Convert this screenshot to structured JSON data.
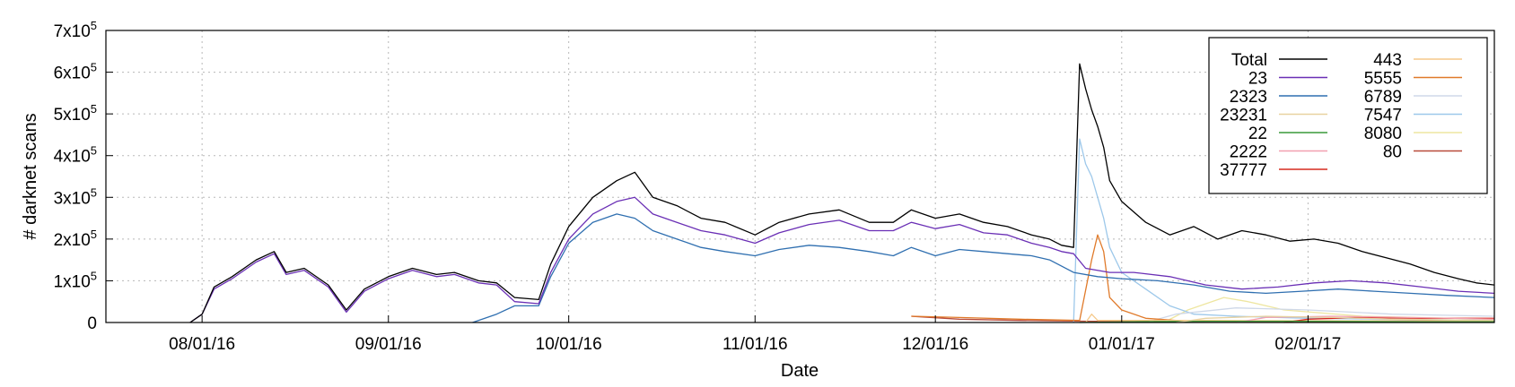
{
  "chart_data": {
    "type": "line",
    "xlabel": "Date",
    "ylabel": "# darknet scans",
    "xlim": [
      "2016-07-16",
      "2017-03-04"
    ],
    "ylim": [
      0,
      700000
    ],
    "y_ticks": [
      {
        "value": 0,
        "base": "0",
        "exp": ""
      },
      {
        "value": 100000,
        "base": "1x10",
        "exp": "5"
      },
      {
        "value": 200000,
        "base": "2x10",
        "exp": "5"
      },
      {
        "value": 300000,
        "base": "3x10",
        "exp": "5"
      },
      {
        "value": 400000,
        "base": "4x10",
        "exp": "5"
      },
      {
        "value": 500000,
        "base": "5x10",
        "exp": "5"
      },
      {
        "value": 600000,
        "base": "6x10",
        "exp": "5"
      },
      {
        "value": 700000,
        "base": "7x10",
        "exp": "5"
      }
    ],
    "x_ticks": [
      {
        "date": "2016-08-01",
        "label": "08/01/16"
      },
      {
        "date": "2016-09-01",
        "label": "09/01/16"
      },
      {
        "date": "2016-10-01",
        "label": "10/01/16"
      },
      {
        "date": "2016-11-01",
        "label": "11/01/16"
      },
      {
        "date": "2016-12-01",
        "label": "12/01/16"
      },
      {
        "date": "2017-01-01",
        "label": "01/01/17"
      },
      {
        "date": "2017-02-01",
        "label": "02/01/17"
      }
    ],
    "grid": true,
    "legend_position": "top-right",
    "series": [
      {
        "name": "Total",
        "color": "#000000",
        "points": [
          [
            "2016-07-30",
            0
          ],
          [
            "2016-08-01",
            20000
          ],
          [
            "2016-08-03",
            85000
          ],
          [
            "2016-08-06",
            110000
          ],
          [
            "2016-08-10",
            150000
          ],
          [
            "2016-08-13",
            170000
          ],
          [
            "2016-08-15",
            120000
          ],
          [
            "2016-08-18",
            130000
          ],
          [
            "2016-08-22",
            90000
          ],
          [
            "2016-08-25",
            30000
          ],
          [
            "2016-08-28",
            80000
          ],
          [
            "2016-09-01",
            110000
          ],
          [
            "2016-09-05",
            130000
          ],
          [
            "2016-09-09",
            115000
          ],
          [
            "2016-09-12",
            120000
          ],
          [
            "2016-09-16",
            100000
          ],
          [
            "2016-09-19",
            95000
          ],
          [
            "2016-09-22",
            60000
          ],
          [
            "2016-09-26",
            55000
          ],
          [
            "2016-09-28",
            140000
          ],
          [
            "2016-10-01",
            230000
          ],
          [
            "2016-10-05",
            300000
          ],
          [
            "2016-10-09",
            340000
          ],
          [
            "2016-10-12",
            360000
          ],
          [
            "2016-10-15",
            300000
          ],
          [
            "2016-10-19",
            280000
          ],
          [
            "2016-10-23",
            250000
          ],
          [
            "2016-10-27",
            240000
          ],
          [
            "2016-11-01",
            210000
          ],
          [
            "2016-11-05",
            240000
          ],
          [
            "2016-11-10",
            260000
          ],
          [
            "2016-11-15",
            270000
          ],
          [
            "2016-11-20",
            240000
          ],
          [
            "2016-11-24",
            240000
          ],
          [
            "2016-11-27",
            270000
          ],
          [
            "2016-12-01",
            250000
          ],
          [
            "2016-12-05",
            260000
          ],
          [
            "2016-12-09",
            240000
          ],
          [
            "2016-12-13",
            230000
          ],
          [
            "2016-12-17",
            210000
          ],
          [
            "2016-12-20",
            200000
          ],
          [
            "2016-12-22",
            185000
          ],
          [
            "2016-12-24",
            180000
          ],
          [
            "2016-12-25",
            620000
          ],
          [
            "2016-12-26",
            560000
          ],
          [
            "2016-12-27",
            510000
          ],
          [
            "2016-12-28",
            470000
          ],
          [
            "2016-12-29",
            420000
          ],
          [
            "2016-12-30",
            340000
          ],
          [
            "2017-01-01",
            290000
          ],
          [
            "2017-01-05",
            240000
          ],
          [
            "2017-01-09",
            210000
          ],
          [
            "2017-01-13",
            230000
          ],
          [
            "2017-01-17",
            200000
          ],
          [
            "2017-01-21",
            220000
          ],
          [
            "2017-01-25",
            210000
          ],
          [
            "2017-01-29",
            195000
          ],
          [
            "2017-02-02",
            200000
          ],
          [
            "2017-02-06",
            190000
          ],
          [
            "2017-02-10",
            170000
          ],
          [
            "2017-02-14",
            155000
          ],
          [
            "2017-02-18",
            140000
          ],
          [
            "2017-02-22",
            120000
          ],
          [
            "2017-02-26",
            105000
          ],
          [
            "2017-03-01",
            95000
          ],
          [
            "2017-03-04",
            90000
          ]
        ]
      },
      {
        "name": "23",
        "color": "#6a2fb5",
        "points": [
          [
            "2016-07-30",
            0
          ],
          [
            "2016-08-01",
            20000
          ],
          [
            "2016-08-03",
            80000
          ],
          [
            "2016-08-06",
            105000
          ],
          [
            "2016-08-10",
            145000
          ],
          [
            "2016-08-13",
            165000
          ],
          [
            "2016-08-15",
            115000
          ],
          [
            "2016-08-18",
            125000
          ],
          [
            "2016-08-22",
            85000
          ],
          [
            "2016-08-25",
            25000
          ],
          [
            "2016-08-28",
            75000
          ],
          [
            "2016-09-01",
            105000
          ],
          [
            "2016-09-05",
            125000
          ],
          [
            "2016-09-09",
            110000
          ],
          [
            "2016-09-12",
            115000
          ],
          [
            "2016-09-16",
            95000
          ],
          [
            "2016-09-19",
            90000
          ],
          [
            "2016-09-22",
            50000
          ],
          [
            "2016-09-26",
            45000
          ],
          [
            "2016-09-28",
            120000
          ],
          [
            "2016-10-01",
            200000
          ],
          [
            "2016-10-05",
            260000
          ],
          [
            "2016-10-09",
            290000
          ],
          [
            "2016-10-12",
            300000
          ],
          [
            "2016-10-15",
            260000
          ],
          [
            "2016-10-19",
            240000
          ],
          [
            "2016-10-23",
            220000
          ],
          [
            "2016-10-27",
            210000
          ],
          [
            "2016-11-01",
            190000
          ],
          [
            "2016-11-05",
            215000
          ],
          [
            "2016-11-10",
            235000
          ],
          [
            "2016-11-15",
            245000
          ],
          [
            "2016-11-20",
            220000
          ],
          [
            "2016-11-24",
            220000
          ],
          [
            "2016-11-27",
            240000
          ],
          [
            "2016-12-01",
            225000
          ],
          [
            "2016-12-05",
            235000
          ],
          [
            "2016-12-09",
            215000
          ],
          [
            "2016-12-13",
            210000
          ],
          [
            "2016-12-17",
            190000
          ],
          [
            "2016-12-20",
            180000
          ],
          [
            "2016-12-22",
            170000
          ],
          [
            "2016-12-24",
            165000
          ],
          [
            "2016-12-26",
            130000
          ],
          [
            "2016-12-30",
            120000
          ],
          [
            "2017-01-03",
            120000
          ],
          [
            "2017-01-09",
            110000
          ],
          [
            "2017-01-15",
            90000
          ],
          [
            "2017-01-21",
            80000
          ],
          [
            "2017-01-27",
            85000
          ],
          [
            "2017-02-02",
            95000
          ],
          [
            "2017-02-08",
            100000
          ],
          [
            "2017-02-14",
            95000
          ],
          [
            "2017-02-20",
            85000
          ],
          [
            "2017-02-26",
            75000
          ],
          [
            "2017-03-04",
            70000
          ]
        ]
      },
      {
        "name": "2323",
        "color": "#2f6fb0",
        "points": [
          [
            "2016-09-15",
            0
          ],
          [
            "2016-09-19",
            20000
          ],
          [
            "2016-09-22",
            40000
          ],
          [
            "2016-09-26",
            40000
          ],
          [
            "2016-09-28",
            110000
          ],
          [
            "2016-10-01",
            190000
          ],
          [
            "2016-10-05",
            240000
          ],
          [
            "2016-10-09",
            260000
          ],
          [
            "2016-10-12",
            250000
          ],
          [
            "2016-10-15",
            220000
          ],
          [
            "2016-10-19",
            200000
          ],
          [
            "2016-10-23",
            180000
          ],
          [
            "2016-10-27",
            170000
          ],
          [
            "2016-11-01",
            160000
          ],
          [
            "2016-11-05",
            175000
          ],
          [
            "2016-11-10",
            185000
          ],
          [
            "2016-11-15",
            180000
          ],
          [
            "2016-11-20",
            170000
          ],
          [
            "2016-11-24",
            160000
          ],
          [
            "2016-11-27",
            180000
          ],
          [
            "2016-12-01",
            160000
          ],
          [
            "2016-12-05",
            175000
          ],
          [
            "2016-12-09",
            170000
          ],
          [
            "2016-12-13",
            165000
          ],
          [
            "2016-12-17",
            160000
          ],
          [
            "2016-12-20",
            150000
          ],
          [
            "2016-12-24",
            120000
          ],
          [
            "2016-12-28",
            110000
          ],
          [
            "2017-01-01",
            105000
          ],
          [
            "2017-01-07",
            100000
          ],
          [
            "2017-01-13",
            90000
          ],
          [
            "2017-01-19",
            75000
          ],
          [
            "2017-01-25",
            70000
          ],
          [
            "2017-01-31",
            75000
          ],
          [
            "2017-02-06",
            80000
          ],
          [
            "2017-02-12",
            75000
          ],
          [
            "2017-02-18",
            70000
          ],
          [
            "2017-02-24",
            65000
          ],
          [
            "2017-03-04",
            60000
          ]
        ]
      },
      {
        "name": "23231",
        "color": "#e8d2a0",
        "points": [
          [
            "2017-01-10",
            0
          ],
          [
            "2017-01-15",
            10000
          ],
          [
            "2017-01-25",
            15000
          ],
          [
            "2017-02-05",
            12000
          ],
          [
            "2017-02-15",
            8000
          ],
          [
            "2017-03-04",
            5000
          ]
        ]
      },
      {
        "name": "22",
        "color": "#3a9a3a",
        "points": [
          [
            "2016-12-25",
            0
          ],
          [
            "2017-01-03",
            2000
          ],
          [
            "2017-01-15",
            3000
          ],
          [
            "2017-02-01",
            3000
          ],
          [
            "2017-02-20",
            2000
          ],
          [
            "2017-03-04",
            2000
          ]
        ]
      },
      {
        "name": "2222",
        "color": "#f2a0b0",
        "points": [
          [
            "2017-01-20",
            0
          ],
          [
            "2017-01-25",
            12000
          ],
          [
            "2017-02-05",
            15000
          ],
          [
            "2017-02-18",
            12000
          ],
          [
            "2017-03-04",
            8000
          ]
        ]
      },
      {
        "name": "37777",
        "color": "#d62a1e",
        "points": [
          [
            "2017-01-28",
            0
          ],
          [
            "2017-02-01",
            8000
          ],
          [
            "2017-02-10",
            12000
          ],
          [
            "2017-02-20",
            10000
          ],
          [
            "2017-03-04",
            10000
          ]
        ]
      },
      {
        "name": "443",
        "color": "#f5c98a",
        "points": [
          [
            "2016-12-26",
            0
          ],
          [
            "2016-12-27",
            20000
          ],
          [
            "2016-12-28",
            5000
          ],
          [
            "2017-01-15",
            5000
          ],
          [
            "2017-03-04",
            3000
          ]
        ]
      },
      {
        "name": "5555",
        "color": "#e07a2a",
        "points": [
          [
            "2016-11-27",
            15000
          ],
          [
            "2016-12-05",
            12000
          ],
          [
            "2016-12-15",
            8000
          ],
          [
            "2016-12-25",
            5000
          ],
          [
            "2016-12-27",
            150000
          ],
          [
            "2016-12-28",
            210000
          ],
          [
            "2016-12-29",
            170000
          ],
          [
            "2016-12-30",
            60000
          ],
          [
            "2017-01-01",
            30000
          ],
          [
            "2017-01-05",
            10000
          ],
          [
            "2017-01-10",
            5000
          ],
          [
            "2017-01-20",
            3000
          ],
          [
            "2017-03-04",
            2000
          ]
        ]
      },
      {
        "name": "6789",
        "color": "#cfd8e8",
        "points": [
          [
            "2017-01-05",
            0
          ],
          [
            "2017-01-10",
            20000
          ],
          [
            "2017-01-20",
            35000
          ],
          [
            "2017-02-01",
            30000
          ],
          [
            "2017-02-15",
            20000
          ],
          [
            "2017-03-04",
            15000
          ]
        ]
      },
      {
        "name": "7547",
        "color": "#9dc8ea",
        "points": [
          [
            "2016-12-24",
            0
          ],
          [
            "2016-12-25",
            440000
          ],
          [
            "2016-12-26",
            380000
          ],
          [
            "2016-12-27",
            350000
          ],
          [
            "2016-12-28",
            300000
          ],
          [
            "2016-12-29",
            250000
          ],
          [
            "2016-12-30",
            180000
          ],
          [
            "2017-01-01",
            120000
          ],
          [
            "2017-01-05",
            80000
          ],
          [
            "2017-01-09",
            40000
          ],
          [
            "2017-01-13",
            20000
          ],
          [
            "2017-01-20",
            15000
          ],
          [
            "2017-02-01",
            10000
          ],
          [
            "2017-03-04",
            5000
          ]
        ]
      },
      {
        "name": "8080",
        "color": "#eee6a0",
        "points": [
          [
            "2017-01-08",
            0
          ],
          [
            "2017-01-12",
            30000
          ],
          [
            "2017-01-18",
            60000
          ],
          [
            "2017-01-22",
            50000
          ],
          [
            "2017-01-28",
            30000
          ],
          [
            "2017-02-10",
            15000
          ],
          [
            "2017-03-04",
            8000
          ]
        ]
      },
      {
        "name": "80",
        "color": "#b84a3a",
        "points": [
          [
            "2016-11-27",
            15000
          ],
          [
            "2016-12-05",
            8000
          ],
          [
            "2016-12-15",
            5000
          ],
          [
            "2016-12-27",
            3000
          ],
          [
            "2017-01-15",
            3000
          ],
          [
            "2017-03-04",
            5000
          ]
        ]
      }
    ]
  }
}
